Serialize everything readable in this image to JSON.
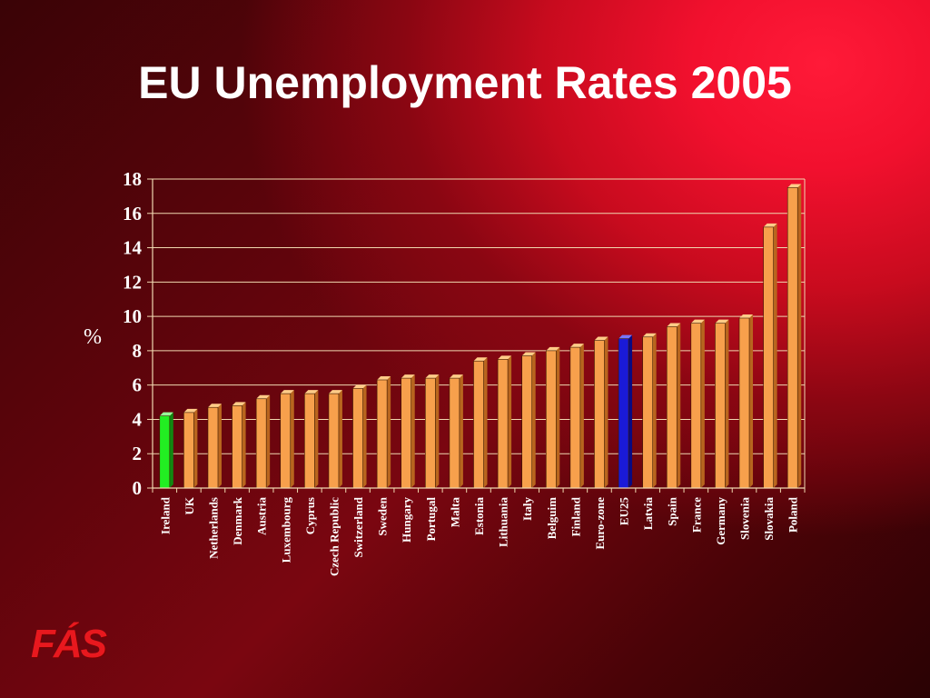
{
  "slide": {
    "title": "EU Unemployment Rates 2005",
    "logo_text": "FÁS"
  },
  "colors": {
    "bar": "#f7a04c",
    "bar_top": "#ffcc88",
    "bar_side": "#b8651e",
    "highlight_ireland": "#22ee22",
    "highlight_eu25": "#1a1ad8",
    "gridline": "#f0d8b0",
    "axis": "#f0d8b0"
  },
  "chart_data": {
    "type": "bar",
    "title": "",
    "xlabel": "",
    "ylabel": "%",
    "ylim": [
      0,
      18
    ],
    "yticks": [
      0,
      2,
      4,
      6,
      8,
      10,
      12,
      14,
      16,
      18
    ],
    "grid": true,
    "categories": [
      "Ireland",
      "UK",
      "Netherlands",
      "Denmark",
      "Austria",
      "Luxembourg",
      "Cyprus",
      "Czech Republic",
      "Switzerland",
      "Sweden",
      "Hungary",
      "Portugal",
      "Malta",
      "Estonia",
      "Lithuania",
      "Italy",
      "Belguim",
      "Finland",
      "Euro-zone",
      "EU25",
      "Latvia",
      "Spain",
      "France",
      "Germany",
      "Slovenia",
      "Slovakia",
      "Poland"
    ],
    "values": [
      4.2,
      4.4,
      4.7,
      4.8,
      5.2,
      5.5,
      5.5,
      5.5,
      5.8,
      6.3,
      6.4,
      6.4,
      6.4,
      7.4,
      7.5,
      7.7,
      8.0,
      8.2,
      8.6,
      8.7,
      8.8,
      9.4,
      9.6,
      9.6,
      9.9,
      15.2,
      17.5
    ],
    "highlighted": {
      "Ireland": "green",
      "EU25": "blue"
    }
  }
}
